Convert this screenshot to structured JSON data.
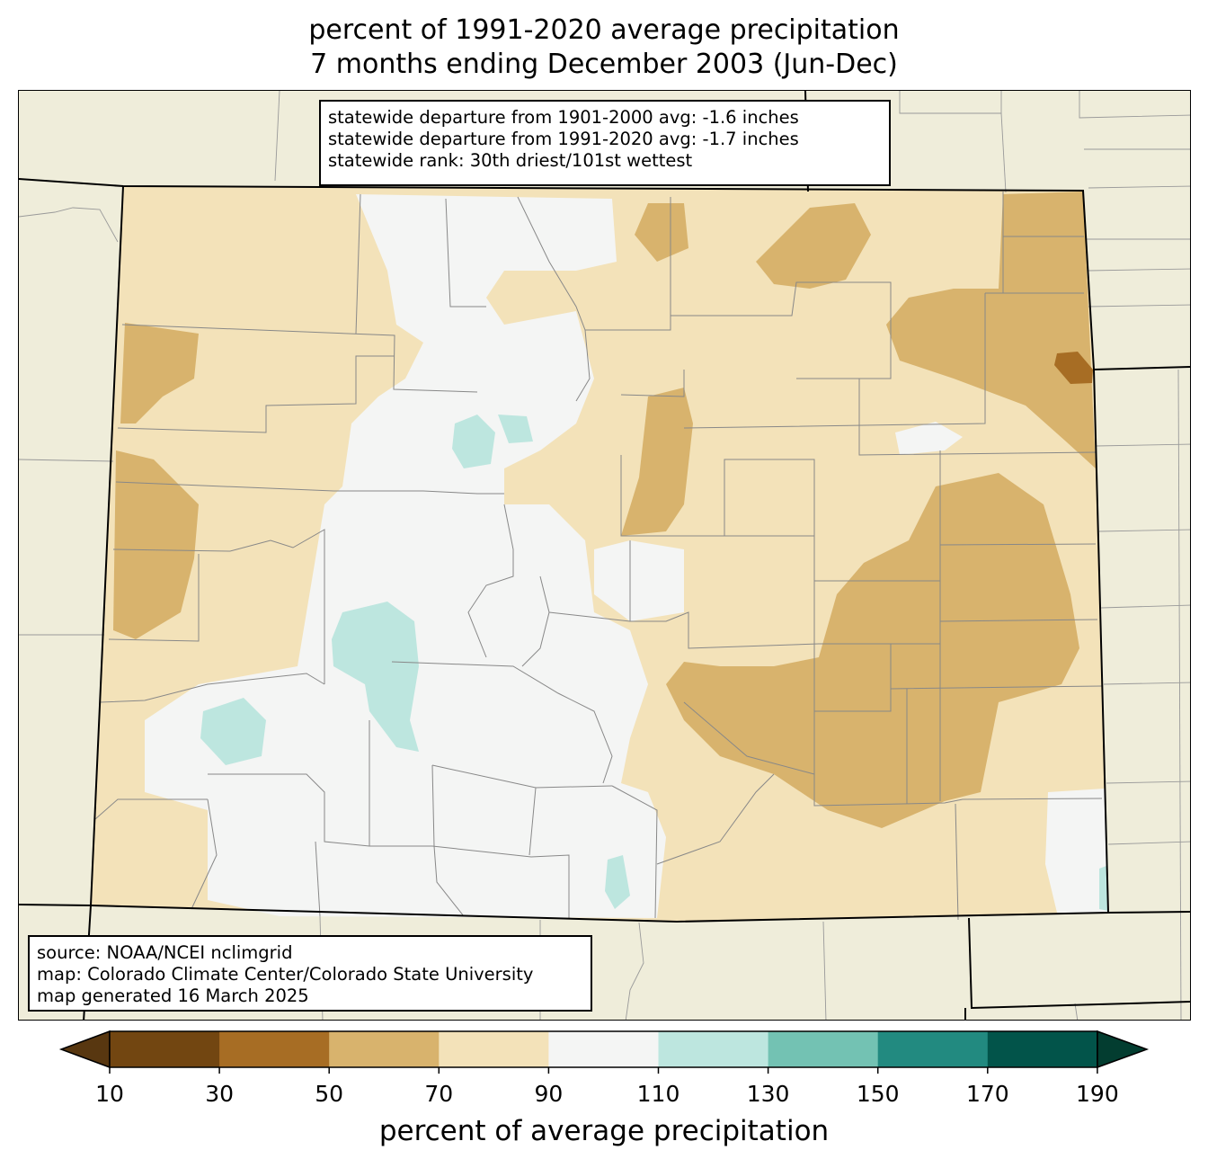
{
  "title": {
    "line1": "percent of 1991-2020 average precipitation",
    "line2": "7 months ending December 2003 (Jun-Dec)"
  },
  "stats": {
    "line1": "statewide departure from 1901-2000 avg: -1.6 inches",
    "line2": "statewide departure from 1991-2020 avg: -1.7 inches",
    "line3": "statewide rank: 30th driest/101st wettest"
  },
  "source": {
    "line1": "source: NOAA/NCEI nclimgrid",
    "line2": "map: Colorado Climate Center/Colorado State University",
    "line3": "map generated 16 March 2025"
  },
  "colorbar": {
    "label": "percent of average precipitation",
    "ticks": [
      "10",
      "30",
      "50",
      "70",
      "90",
      "110",
      "130",
      "150",
      "170",
      "190"
    ],
    "colors": [
      "#724611",
      "#a76d24",
      "#d8b36d",
      "#f3e2b9",
      "#f4f5f4",
      "#bde6df",
      "#73c2b3",
      "#228a80",
      "#02544a"
    ],
    "under_color": "#583710",
    "over_color": "#033d30"
  },
  "map": {
    "background_color": "#efedda",
    "dominant_fill": "#f3e2b9"
  }
}
